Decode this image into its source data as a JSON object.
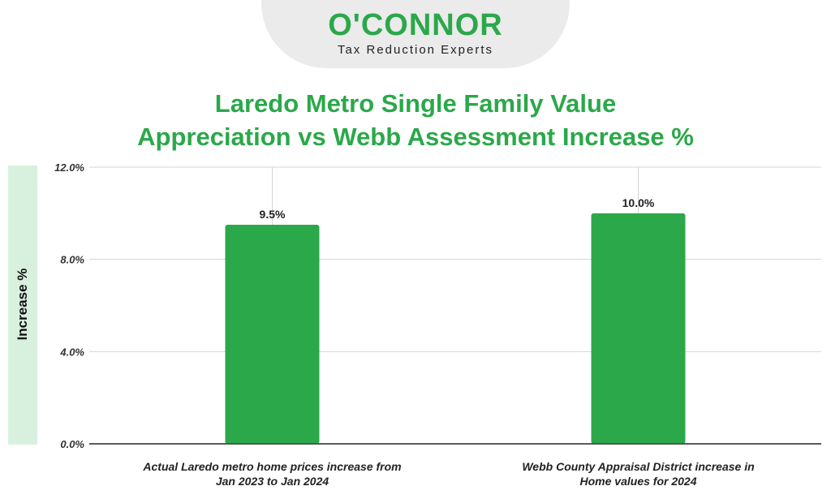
{
  "logo": {
    "name": "O'CONNOR",
    "tagline": "Tax Reduction Experts"
  },
  "chart_data": {
    "type": "bar",
    "title": [
      "Laredo Metro Single Family Value",
      "Appreciation vs Webb Assessment Increase %"
    ],
    "ylabel": "Increase %",
    "xlabel": "",
    "ylim": [
      0,
      12
    ],
    "yticks": [
      0,
      4,
      8,
      12
    ],
    "ytick_labels": [
      "0.0%",
      "4.0%",
      "8.0%",
      "12.0%"
    ],
    "categories": [
      [
        "Actual Laredo metro home prices increase from",
        "Jan 2023 to Jan 2024"
      ],
      [
        "Webb County Appraisal District increase in",
        "Home values for 2024"
      ]
    ],
    "values": [
      9.5,
      10.0
    ],
    "value_labels": [
      "9.5%",
      "10.0%"
    ],
    "bar_color": "#2ba84a",
    "grid": true
  }
}
